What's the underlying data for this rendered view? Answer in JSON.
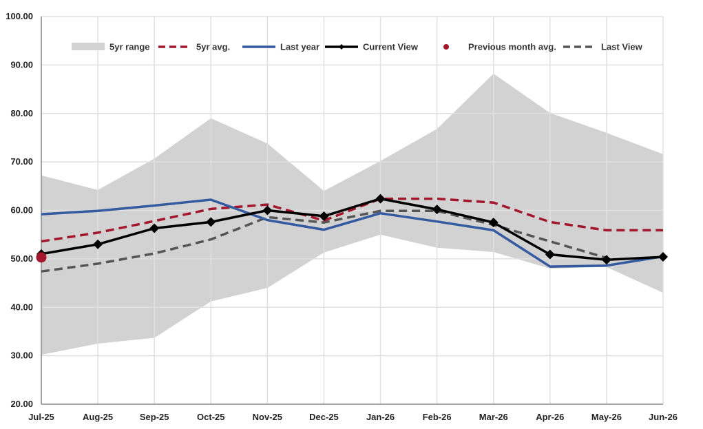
{
  "chart_data": {
    "type": "line",
    "categories": [
      "Jul-25",
      "Aug-25",
      "Sep-25",
      "Oct-25",
      "Nov-25",
      "Dec-25",
      "Jan-26",
      "Feb-26",
      "Mar-26",
      "Apr-26",
      "May-26",
      "Jun-26"
    ],
    "ylim": [
      20,
      100
    ],
    "yticks": [
      "20.00",
      "30.00",
      "40.00",
      "50.00",
      "60.00",
      "70.00",
      "80.00",
      "90.00",
      "100.00"
    ],
    "grid": true,
    "legend_placement": "top",
    "range_band": {
      "name": "5yr range",
      "color": "#d3d2d3",
      "low": [
        30.2,
        32.5,
        33.7,
        41.2,
        44.0,
        51.3,
        55.0,
        52.3,
        51.4,
        48.0,
        48.3,
        43.0
      ],
      "high": [
        67.2,
        64.2,
        70.7,
        79.0,
        73.8,
        64.0,
        70.2,
        76.8,
        88.2,
        80.1,
        76.0,
        71.6
      ]
    },
    "series": [
      {
        "name": "5yr avg.",
        "color": "#a3172c",
        "style": "dashed",
        "values": [
          53.6,
          55.4,
          57.8,
          60.3,
          61.2,
          57.9,
          62.4,
          62.4,
          61.6,
          57.6,
          55.9,
          55.9
        ]
      },
      {
        "name": "Last year",
        "color": "#345aa0",
        "style": "solid",
        "values": [
          59.2,
          59.9,
          61.0,
          62.2,
          58.0,
          56.0,
          59.4,
          57.7,
          55.9,
          48.4,
          48.6,
          50.5
        ]
      },
      {
        "name": "Current View",
        "color": "#000000",
        "style": "solid-markers",
        "values": [
          51.0,
          53.0,
          56.3,
          57.6,
          60.0,
          58.8,
          62.4,
          60.2,
          57.5,
          50.9,
          49.8,
          50.4
        ]
      },
      {
        "name": "Last View",
        "color": "#555555",
        "style": "dashed",
        "values": [
          47.4,
          49.0,
          51.1,
          54.0,
          58.6,
          57.5,
          59.9,
          59.9,
          57.0,
          53.6,
          50.2,
          null
        ]
      }
    ],
    "points": [
      {
        "name": "Previous month avg.",
        "color": "#a3172c",
        "x": "Jul-25",
        "y": 50.3
      }
    ]
  }
}
